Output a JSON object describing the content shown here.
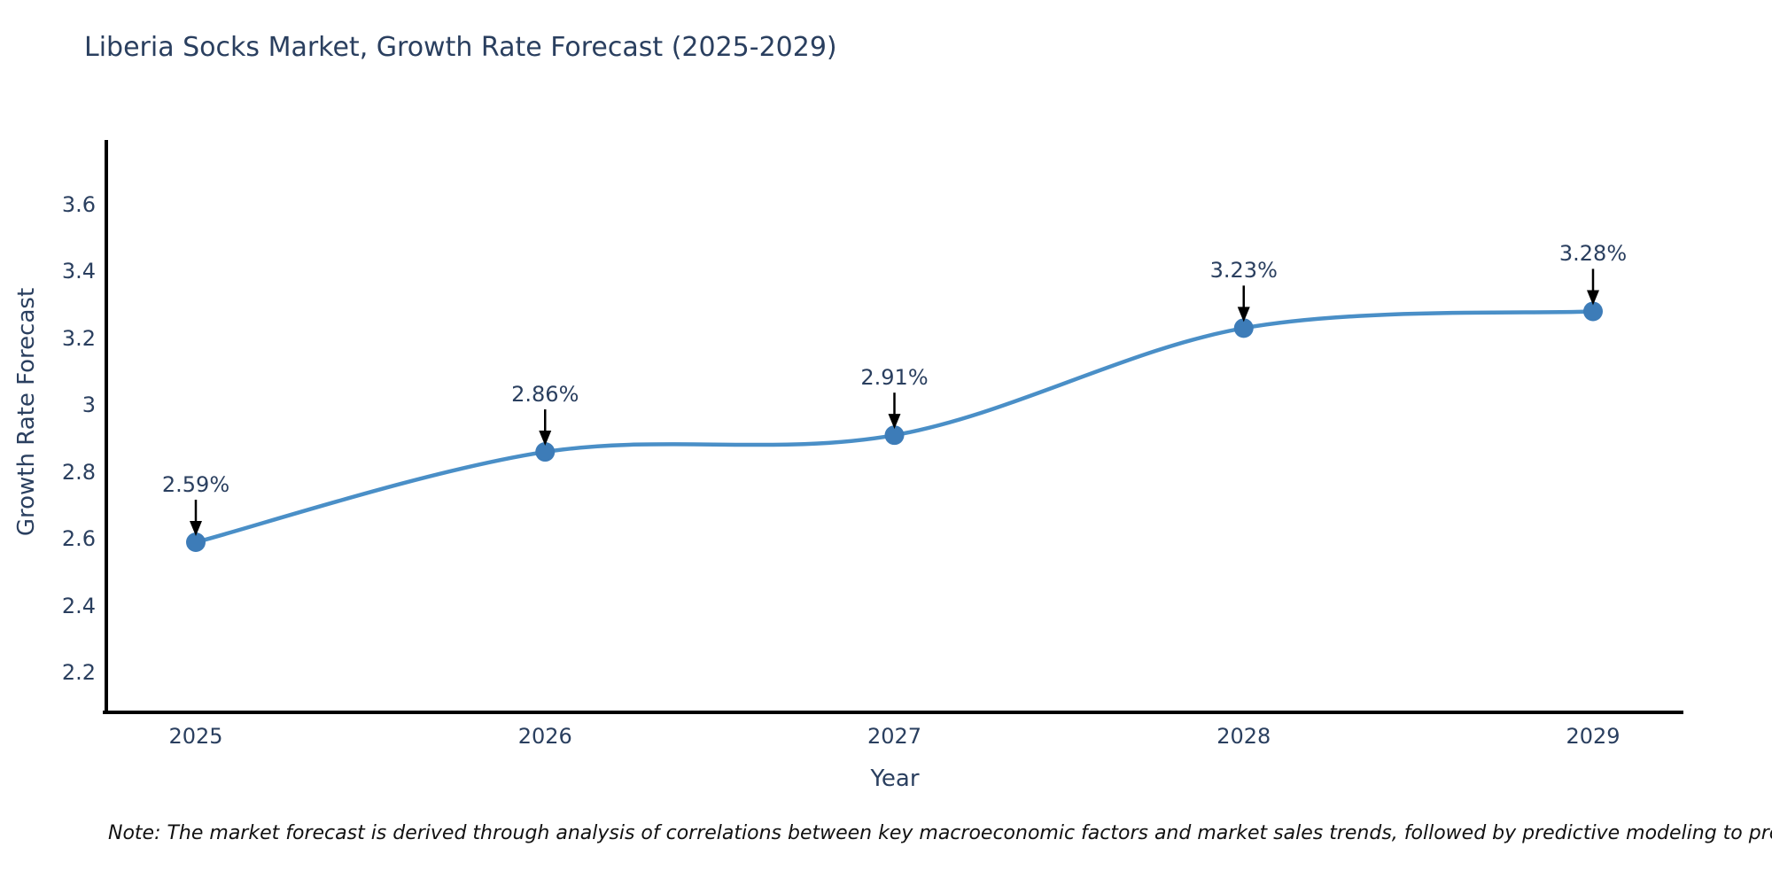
{
  "title": "Liberia Socks Market, Growth Rate Forecast (2025-2029)",
  "note": "Note: The market forecast is derived through analysis of correlations between key macroeconomic factors and market sales trends, followed by predictive modeling to project future sales",
  "colors": {
    "line": "#4a8fc7",
    "marker": "#3d7cb8",
    "text": "#2a3f5f",
    "axis": "#000000",
    "arrow": "#000000",
    "note_text": "#111111",
    "background": "#ffffff"
  },
  "chart_data": {
    "type": "line",
    "title": "Liberia Socks Market, Growth Rate Forecast (2025-2029)",
    "xlabel": "Year",
    "ylabel": "Growth Rate Forecast",
    "x": [
      2025,
      2026,
      2027,
      2028,
      2029
    ],
    "series": [
      {
        "name": "Growth Rate Forecast",
        "values": [
          2.59,
          2.86,
          2.91,
          3.23,
          3.28
        ]
      }
    ],
    "point_labels": [
      "2.59%",
      "2.86%",
      "2.91%",
      "3.23%",
      "3.28%"
    ],
    "xaxis_ticks": [
      "2025",
      "2026",
      "2027",
      "2028",
      "2029"
    ],
    "yaxis_ticks": [
      "3.6",
      "3.4",
      "3.2",
      "3",
      "2.8",
      "2.6",
      "2.4",
      "2.2"
    ],
    "yaxis_tick_values": [
      3.6,
      3.4,
      3.2,
      3.0,
      2.8,
      2.6,
      2.4,
      2.2
    ],
    "ylim": [
      2.08,
      3.87
    ],
    "xlim": [
      2024.74,
      2029.26
    ],
    "grid": false,
    "legend": "none",
    "line_shape": "spline",
    "annotations": "value labels with down arrows above each point"
  }
}
